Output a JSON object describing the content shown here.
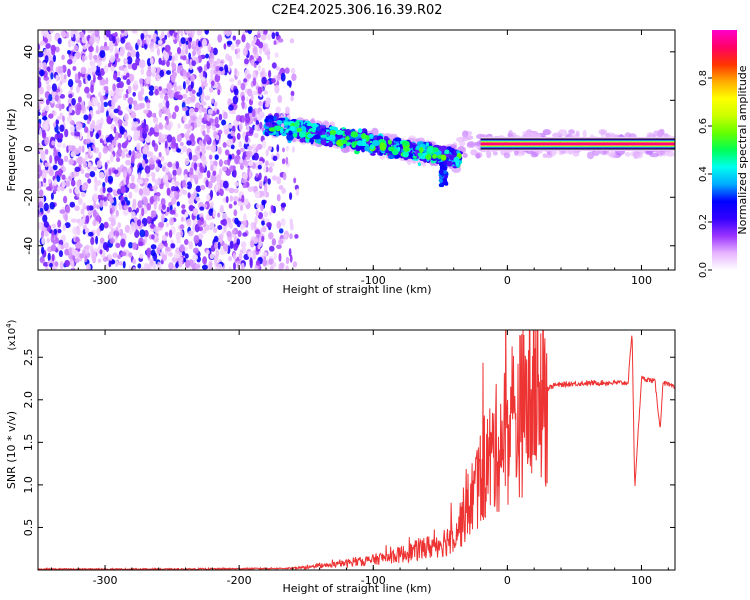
{
  "chart_data": [
    {
      "type": "heatmap",
      "title": "C2E4.2025.306.16.39.R02",
      "xlabel": "Height of straight line (km)",
      "ylabel": "Frequency (Hz)",
      "xlim": [
        -350,
        125
      ],
      "ylim": [
        -50,
        49
      ],
      "xticks": [
        -300,
        -200,
        -100,
        0,
        100
      ],
      "yticks": [
        -40,
        -20,
        0,
        20,
        40
      ],
      "colorbar": {
        "label": "Normalized spectral amplitude",
        "range": [
          0,
          1
        ],
        "ticks": [
          "0.0",
          "0.2",
          "0.4",
          "0.6",
          "0.8"
        ],
        "colors": [
          "#ffffff",
          "#e6b3ff",
          "#9933ff",
          "#3300ff",
          "#0000ff",
          "#00aaff",
          "#00ffee",
          "#00ff55",
          "#66ff00",
          "#ccff00",
          "#ffff00",
          "#ffaa00",
          "#ff3300",
          "#ff0066",
          "#ff00cc"
        ]
      },
      "regions": [
        {
          "name": "noise",
          "x": [
            -350,
            -160
          ],
          "freq": [
            -50,
            49
          ],
          "amplitude": 0.12
        },
        {
          "name": "descending-band",
          "x": [
            -180,
            -35
          ],
          "freq_start": 10,
          "freq_end": -4,
          "amplitude": 0.35
        },
        {
          "name": "streak",
          "x": [
            -50,
            -45
          ],
          "freq": [
            -15,
            -6
          ],
          "amplitude": 0.3
        },
        {
          "name": "stable-line",
          "x": [
            -20,
            125
          ],
          "freq": 2,
          "amplitude": 0.95
        }
      ]
    },
    {
      "type": "line",
      "xlabel": "Height of straight line (km)",
      "ylabel": "SNR (10 * v/v)",
      "y_multiplier": "(x10",
      "y_exponent": "4",
      "xlim": [
        -350,
        125
      ],
      "ylim": [
        0,
        2.82
      ],
      "xticks": [
        -300,
        -200,
        -100,
        0,
        100
      ],
      "yticks": [
        "0.5",
        "1.0",
        "1.5",
        "2.0",
        "2.5"
      ],
      "color": "#ee3333",
      "series": [
        {
          "name": "SNR",
          "x": [
            -350,
            -250,
            -160,
            -140,
            -120,
            -100,
            -80,
            -60,
            -45,
            -35,
            -25,
            -15,
            -5,
            5,
            15,
            25,
            35,
            50,
            70,
            90,
            93,
            95,
            100,
            110,
            114,
            116,
            125
          ],
          "y": [
            0.01,
            0.01,
            0.02,
            0.04,
            0.08,
            0.12,
            0.18,
            0.26,
            0.35,
            0.55,
            0.9,
            1.25,
            1.5,
            1.75,
            1.95,
            2.1,
            2.17,
            2.19,
            2.2,
            2.2,
            2.8,
            0.95,
            2.25,
            2.22,
            1.65,
            2.2,
            2.14
          ]
        }
      ]
    }
  ]
}
